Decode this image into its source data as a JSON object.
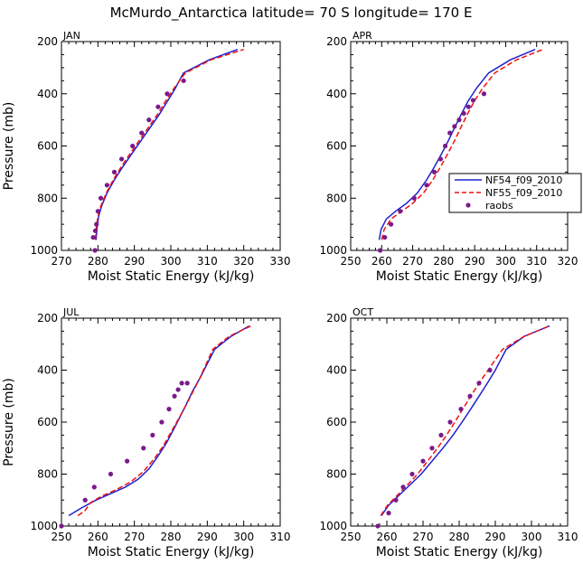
{
  "figure_title": "McMurdo_Antarctica  latitude= 70 S longitude= 170 E",
  "colors": {
    "NF54": "#1f1fcf",
    "NF55": "#ee1111",
    "raobs": "#7a1a8a"
  },
  "legend": {
    "entries": [
      "NF54_f09_2010",
      "NF55_f09_2010",
      "raobs"
    ],
    "placement": "right of APR panel"
  },
  "chart_data": [
    {
      "type": "line",
      "title": "JAN",
      "xlabel": "Moist Static Energy (kJ/kg)",
      "ylabel": "Pressure (mb)",
      "xlim": [
        270,
        330
      ],
      "xticks": [
        270,
        280,
        290,
        300,
        310,
        320,
        330
      ],
      "ylim": [
        1000,
        200
      ],
      "yticks": [
        200,
        400,
        600,
        800,
        1000
      ],
      "series": [
        {
          "name": "NF54_f09_2010",
          "style": "solid",
          "x": [
            279.5,
            279.7,
            280.2,
            281.0,
            282.5,
            284.5,
            286.8,
            289.3,
            291.8,
            294.3,
            296.8,
            299.0,
            301.0,
            303.5,
            310.5,
            318.3
          ],
          "y": [
            960,
            920,
            870,
            830,
            780,
            730,
            680,
            630,
            580,
            530,
            480,
            430,
            385,
            320,
            270,
            230
          ]
        },
        {
          "name": "NF55_f09_2010",
          "style": "dashed",
          "x": [
            279.3,
            279.5,
            280.0,
            280.8,
            282.3,
            284.2,
            286.4,
            288.8,
            291.3,
            293.8,
            296.3,
            298.5,
            300.8,
            304.0,
            311.0,
            320.0
          ],
          "y": [
            960,
            920,
            870,
            830,
            780,
            730,
            680,
            630,
            580,
            530,
            480,
            430,
            380,
            320,
            270,
            230
          ]
        },
        {
          "name": "raobs",
          "style": "markers",
          "x": [
            279.2,
            278.7,
            279.3,
            279.6,
            280.0,
            280.8,
            282.5,
            284.5,
            286.5,
            289.5,
            292.0,
            294.0,
            296.5,
            299.0,
            303.5
          ],
          "y": [
            1000,
            950,
            925,
            900,
            850,
            800,
            750,
            700,
            650,
            600,
            550,
            500,
            450,
            400,
            350
          ]
        }
      ]
    },
    {
      "type": "line",
      "title": "APR",
      "xlabel": "Moist Static Energy (kJ/kg)",
      "ylabel": "",
      "xlim": [
        250,
        320
      ],
      "xticks": [
        250,
        260,
        270,
        280,
        290,
        300,
        310,
        320
      ],
      "ylim": [
        1000,
        200
      ],
      "yticks": [
        200,
        400,
        600,
        800,
        1000
      ],
      "series": [
        {
          "name": "NF54_f09_2010",
          "style": "solid",
          "x": [
            259.2,
            259.8,
            261.5,
            264.5,
            268.0,
            271.5,
            274.5,
            277.0,
            279.3,
            281.5,
            283.5,
            285.6,
            287.8,
            290.5,
            294.5,
            301.5,
            309.5
          ],
          "y": [
            960,
            920,
            880,
            850,
            820,
            780,
            730,
            680,
            630,
            580,
            530,
            480,
            430,
            380,
            320,
            270,
            230
          ]
        },
        {
          "name": "NF55_f09_2010",
          "style": "dashed",
          "x": [
            260.0,
            260.8,
            263.0,
            266.5,
            270.0,
            273.5,
            276.5,
            279.0,
            281.3,
            283.5,
            285.5,
            287.6,
            289.8,
            292.5,
            296.5,
            303.5,
            312.0
          ],
          "y": [
            960,
            920,
            880,
            850,
            820,
            780,
            730,
            680,
            630,
            580,
            530,
            480,
            430,
            380,
            320,
            270,
            230
          ]
        },
        {
          "name": "raobs",
          "style": "markers",
          "x": [
            259.5,
            261.0,
            263.0,
            266.0,
            270.5,
            274.5,
            277.0,
            279.0,
            280.5,
            282.0,
            283.5,
            285.0,
            286.5,
            288.0,
            289.5,
            293.0
          ],
          "y": [
            1000,
            950,
            900,
            850,
            800,
            750,
            700,
            650,
            600,
            550,
            525,
            500,
            475,
            450,
            425,
            400
          ]
        }
      ]
    },
    {
      "type": "line",
      "title": "JUL",
      "xlabel": "Moist Static Energy (kJ/kg)",
      "ylabel": "Pressure (mb)",
      "xlim": [
        250,
        310
      ],
      "xticks": [
        250,
        260,
        270,
        280,
        290,
        300,
        310
      ],
      "ylim": [
        1000,
        200
      ],
      "yticks": [
        200,
        400,
        600,
        800,
        1000
      ],
      "series": [
        {
          "name": "NF54_f09_2010",
          "style": "solid",
          "x": [
            252.0,
            255.5,
            259.5,
            263.5,
            267.5,
            271.0,
            274.0,
            276.5,
            278.8,
            280.7,
            282.5,
            284.3,
            286.0,
            288.0,
            292.0,
            296.5,
            301.5
          ],
          "y": [
            960,
            930,
            900,
            875,
            850,
            820,
            780,
            730,
            680,
            630,
            580,
            530,
            480,
            430,
            320,
            270,
            230
          ]
        },
        {
          "name": "NF55_f09_2010",
          "style": "dashed",
          "x": [
            254.5,
            256.5,
            258.0,
            261.0,
            265.0,
            269.0,
            272.5,
            275.5,
            278.0,
            280.0,
            282.0,
            284.0,
            285.8,
            287.8,
            291.5,
            296.0,
            302.0
          ],
          "y": [
            960,
            940,
            910,
            885,
            860,
            830,
            790,
            740,
            690,
            640,
            590,
            540,
            490,
            435,
            320,
            270,
            230
          ]
        },
        {
          "name": "raobs",
          "style": "markers",
          "x": [
            250.0,
            256.5,
            259.0,
            263.5,
            268.0,
            272.5,
            275.0,
            277.5,
            279.5,
            281.0,
            282.0,
            283.0,
            284.5
          ],
          "y": [
            1000,
            900,
            850,
            800,
            750,
            700,
            650,
            600,
            550,
            500,
            475,
            450,
            450
          ]
        }
      ]
    },
    {
      "type": "line",
      "title": "OCT",
      "xlabel": "Moist Static Energy (kJ/kg)",
      "ylabel": "",
      "xlim": [
        250,
        310
      ],
      "xticks": [
        250,
        260,
        270,
        280,
        290,
        300,
        310
      ],
      "ylim": [
        1000,
        200
      ],
      "yticks": [
        200,
        400,
        600,
        800,
        1000
      ],
      "series": [
        {
          "name": "NF54_f09_2010",
          "style": "solid",
          "x": [
            258.5,
            260.5,
            263.5,
            266.5,
            269.5,
            272.5,
            275.5,
            278.3,
            280.8,
            283.2,
            285.5,
            287.8,
            290.0,
            293.0,
            298.0,
            305.0
          ],
          "y": [
            960,
            920,
            880,
            840,
            800,
            750,
            700,
            650,
            600,
            550,
            500,
            450,
            400,
            320,
            270,
            230
          ]
        },
        {
          "name": "NF55_f09_2010",
          "style": "dashed",
          "x": [
            258.3,
            260.2,
            263.0,
            265.8,
            268.5,
            271.3,
            274.0,
            276.5,
            278.8,
            281.0,
            283.2,
            285.5,
            288.0,
            292.0,
            298.0,
            305.0
          ],
          "y": [
            960,
            920,
            880,
            840,
            800,
            750,
            700,
            650,
            600,
            550,
            500,
            450,
            400,
            320,
            270,
            230
          ]
        },
        {
          "name": "raobs",
          "style": "markers",
          "x": [
            257.5,
            260.5,
            262.5,
            264.5,
            267.0,
            270.0,
            272.5,
            275.0,
            277.5,
            280.5,
            283.0,
            285.5,
            288.5
          ],
          "y": [
            1000,
            950,
            900,
            850,
            800,
            750,
            700,
            650,
            600,
            550,
            500,
            450,
            400
          ]
        }
      ]
    }
  ]
}
